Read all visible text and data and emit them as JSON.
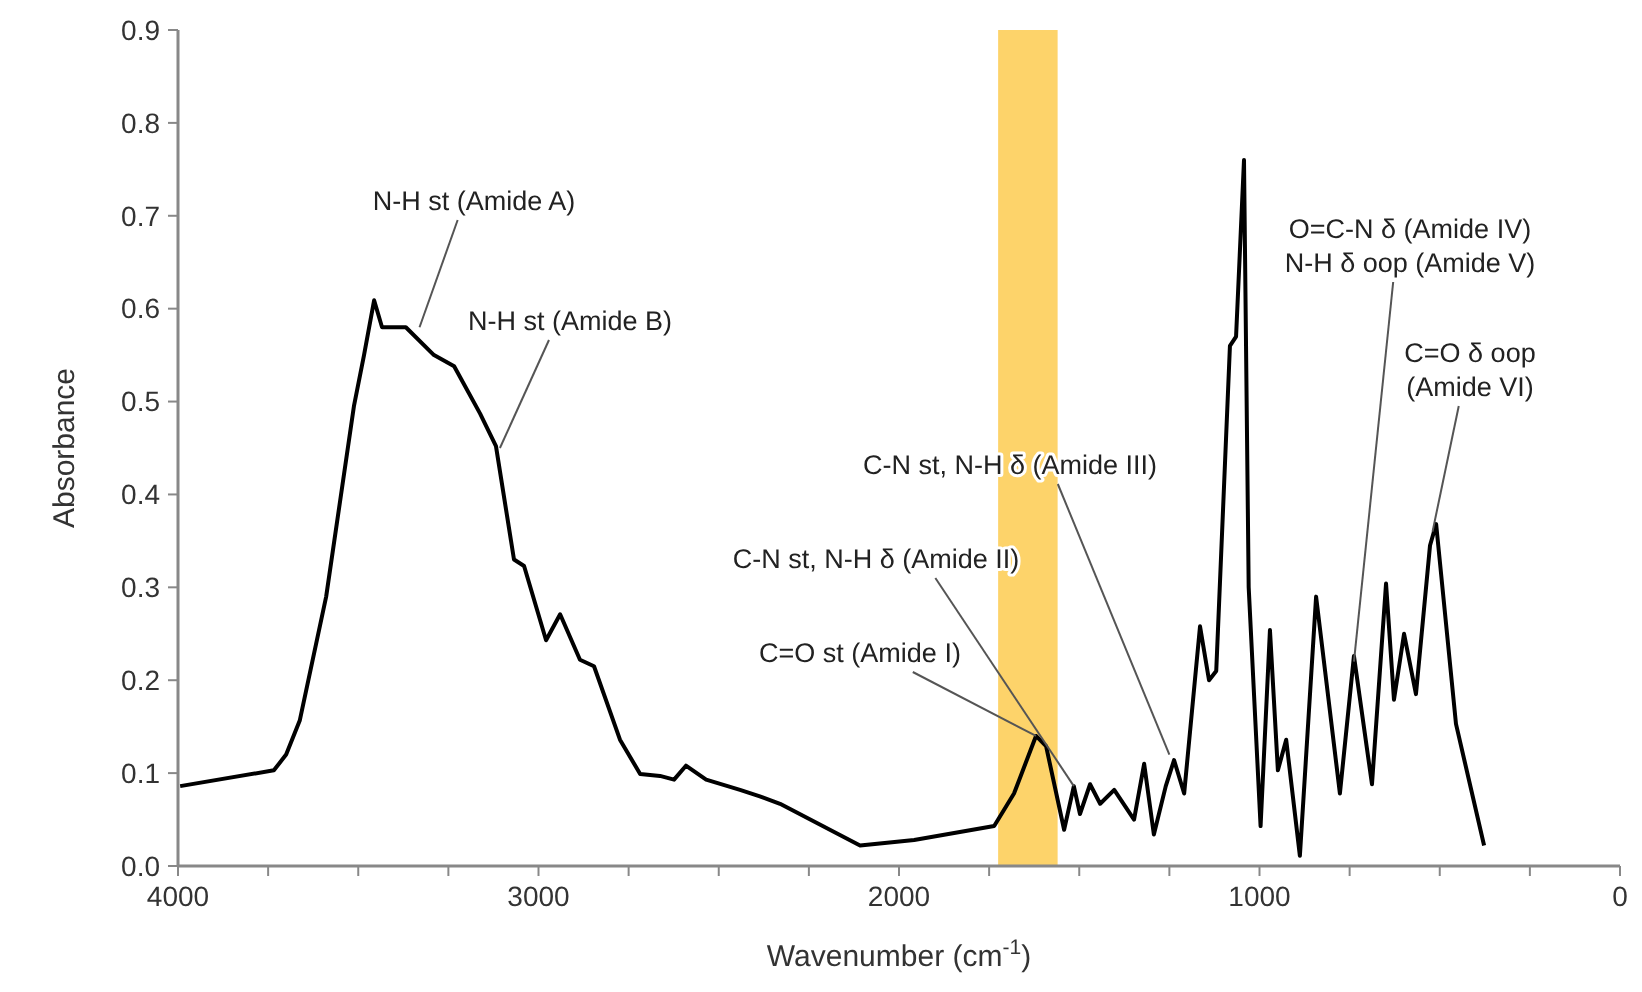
{
  "chart_data": {
    "type": "line",
    "xlabel": "Wavenumber (cm$^{-1}$)",
    "ylabel": "Absorbance",
    "xlim": [
      4000,
      0
    ],
    "ylim": [
      0,
      0.9
    ],
    "xticks": [
      4000,
      {
        "value": 3750,
        "label": null
      },
      {
        "value": 3500,
        "label": null
      },
      {
        "value": 3250,
        "label": null
      },
      3000,
      {
        "value": 2750,
        "label": null
      },
      {
        "value": 2500,
        "label": null
      },
      {
        "value": 2250,
        "label": null
      },
      2000,
      {
        "value": 1750,
        "label": null
      },
      {
        "value": 1500,
        "label": null
      },
      {
        "value": 1250,
        "label": null
      },
      1000,
      {
        "value": 750,
        "label": null
      },
      {
        "value": 500,
        "label": null
      },
      {
        "value": 250,
        "label": null
      },
      0
    ],
    "yticks": [
      {
        "value": 0,
        "label": "0.0"
      },
      0.1,
      0.2,
      0.3,
      0.4,
      0.5,
      0.6,
      0.7,
      0.8,
      0.9
    ],
    "grid": false,
    "bands": [
      {
        "axis": "x",
        "from": 1725,
        "to": 1560,
        "color": "#fdd36a"
      }
    ],
    "series": [
      {
        "color": "#000000",
        "line_style": "solid",
        "x": [
          3994,
          3734,
          3700,
          3662,
          3589,
          3512,
          3484,
          3456,
          3434,
          3368,
          3290,
          3234,
          3162,
          3118,
          3068,
          3040,
          2979,
          2940,
          2885,
          2846,
          2774,
          2718,
          2663,
          2624,
          2591,
          2535,
          2441,
          2386,
          2330,
          2108,
          1958,
          1736,
          1681,
          1620,
          1592,
          1542,
          1515,
          1498,
          1470,
          1442,
          1403,
          1348,
          1320,
          1293,
          1260,
          1237,
          1209,
          1165,
          1140,
          1120,
          1082,
          1065,
          1043,
          1030,
          997,
          971,
          949,
          926,
          888,
          843,
          777,
          738,
          688,
          649,
          627,
          599,
          566,
          527,
          510,
          455,
          377
        ],
        "values": [
          0.086,
          0.103,
          0.12,
          0.157,
          0.29,
          0.495,
          0.55,
          0.609,
          0.58,
          0.58,
          0.55,
          0.538,
          0.487,
          0.452,
          0.33,
          0.323,
          0.243,
          0.271,
          0.222,
          0.215,
          0.136,
          0.099,
          0.097,
          0.093,
          0.108,
          0.093,
          0.082,
          0.075,
          0.067,
          0.022,
          0.028,
          0.043,
          0.078,
          0.14,
          0.129,
          0.039,
          0.086,
          0.056,
          0.088,
          0.067,
          0.082,
          0.05,
          0.11,
          0.034,
          0.086,
          0.114,
          0.078,
          0.258,
          0.2,
          0.21,
          0.56,
          0.57,
          0.76,
          0.3,
          0.043,
          0.254,
          0.103,
          0.136,
          0.011,
          0.29,
          0.078,
          0.226,
          0.088,
          0.304,
          0.179,
          0.25,
          0.185,
          0.345,
          0.368,
          0.153,
          0.022
        ]
      }
    ],
    "annotations": [
      {
        "text": "N-H st (Amide A)",
        "x": 3330,
        "y": 0.58
      },
      {
        "text": "N-H st (Amide B)",
        "x": 3107,
        "y": 0.45
      },
      {
        "text": "C=O st (Amide I)",
        "x": 1620,
        "y": 0.14
      },
      {
        "text": "C-N st, N-H δ (Amide II)",
        "x": 1515,
        "y": 0.086
      },
      {
        "text": "C-N st, N-H δ (Amide III)",
        "x": 1250,
        "y": 0.12
      },
      {
        "text": "O=C-N δ (Amide IV)\nN-H δ oop (Amide V)",
        "x": 738,
        "y": 0.22
      },
      {
        "text": "C=O δ oop\n(Amide VI)",
        "x": 520,
        "y": 0.36
      }
    ]
  }
}
